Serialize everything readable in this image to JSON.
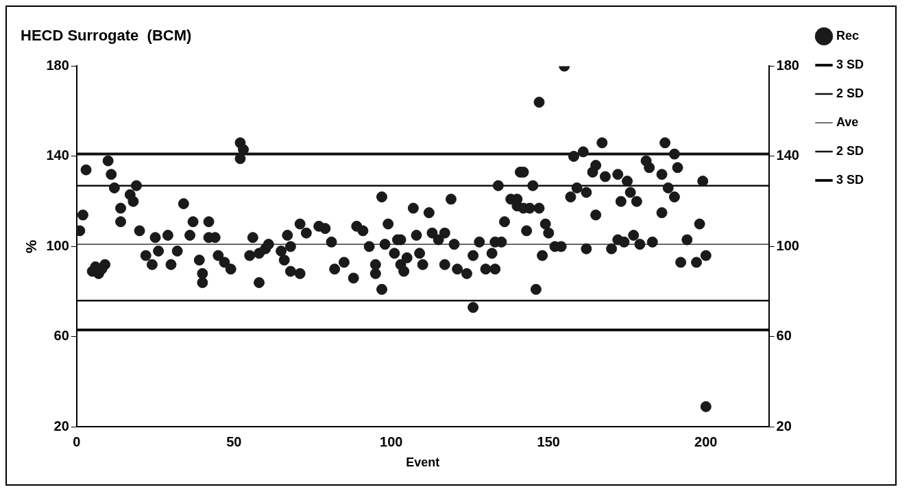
{
  "chart_data": {
    "type": "scatter",
    "title": "HECD Surrogate  (BCM)",
    "xlabel": "Event",
    "ylabel": "%",
    "xlim": [
      0,
      220
    ],
    "xticks": [
      0,
      50,
      100,
      150,
      200
    ],
    "ylim": [
      20,
      180
    ],
    "yticks": [
      20,
      60,
      100,
      140,
      180
    ],
    "y2lim": [
      20,
      180
    ],
    "y2ticks": [
      20,
      60,
      100,
      140,
      180
    ],
    "grid": false,
    "legend": "right",
    "marker": "circle",
    "series": [
      {
        "name": "Rec",
        "color": "#1a1a1a",
        "x": [
          1,
          2,
          3,
          5,
          6,
          7,
          8,
          9,
          10,
          11,
          12,
          14,
          14,
          17,
          18,
          19,
          20,
          22,
          24,
          25,
          26,
          29,
          30,
          32,
          34,
          36,
          37,
          39,
          40,
          40,
          42,
          42,
          44,
          45,
          47,
          49,
          52,
          53,
          52,
          56,
          55,
          58,
          58,
          60,
          61,
          65,
          66,
          67,
          68,
          68,
          71,
          71,
          73,
          77,
          79,
          81,
          82,
          85,
          88,
          89,
          91,
          93,
          95,
          95,
          97,
          97,
          98,
          99,
          101,
          102,
          103,
          103,
          104,
          105,
          107,
          108,
          109,
          110,
          112,
          113,
          115,
          117,
          119,
          120,
          117,
          121,
          124,
          126,
          126,
          128,
          130,
          132,
          133,
          133,
          135,
          134,
          136,
          138,
          140,
          141,
          142,
          145,
          140,
          142,
          144,
          147,
          143,
          149,
          150,
          152,
          154,
          148,
          146,
          155,
          147,
          158,
          161,
          167,
          157,
          159,
          162,
          162,
          164,
          165,
          165,
          168,
          170,
          172,
          172,
          173,
          174,
          175,
          177,
          176,
          178,
          179,
          181,
          183,
          182,
          186,
          186,
          187,
          190,
          191,
          188,
          190,
          192,
          194,
          198,
          197,
          200,
          199,
          200
        ],
        "values": [
          107,
          114,
          134,
          89,
          91,
          88,
          90,
          92,
          138,
          132,
          126,
          117,
          111,
          123,
          120,
          127,
          107,
          96,
          92,
          104,
          98,
          105,
          92,
          98,
          119,
          105,
          111,
          94,
          84,
          88,
          111,
          104,
          104,
          96,
          93,
          90,
          146,
          143,
          139,
          104,
          96,
          84,
          97,
          99,
          101,
          98,
          94,
          105,
          89,
          100,
          110,
          88,
          106,
          109,
          108,
          102,
          90,
          93,
          86,
          109,
          107,
          100,
          92,
          88,
          81,
          122,
          101,
          110,
          97,
          103,
          92,
          103,
          89,
          95,
          117,
          105,
          97,
          92,
          115,
          106,
          103,
          106,
          121,
          101,
          92,
          90,
          88,
          73,
          96,
          102,
          90,
          97,
          102,
          90,
          102,
          127,
          111,
          121,
          118,
          133,
          133,
          127,
          121,
          117,
          117,
          117,
          107,
          110,
          106,
          100,
          100,
          96,
          81,
          180,
          164,
          140,
          142,
          146,
          122,
          126,
          124,
          99,
          133,
          136,
          114,
          131,
          99,
          132,
          103,
          120,
          102,
          129,
          105,
          124,
          120,
          101,
          138,
          102,
          135,
          115,
          132,
          146,
          141,
          135,
          126,
          122,
          93,
          103,
          110,
          93,
          96,
          129,
          29
        ]
      }
    ],
    "ref_lines": [
      {
        "axis": "y",
        "value": 141,
        "label": "3 SD",
        "color": "#111111"
      },
      {
        "axis": "y",
        "value": 127,
        "label": "2 SD",
        "color": "#111111"
      },
      {
        "axis": "y",
        "value": 101,
        "label": "Ave",
        "color": "#111111"
      },
      {
        "axis": "y",
        "value": 76,
        "label": "2 SD",
        "color": "#111111"
      },
      {
        "axis": "y",
        "value": 63,
        "label": "3 SD",
        "color": "#111111"
      }
    ]
  }
}
